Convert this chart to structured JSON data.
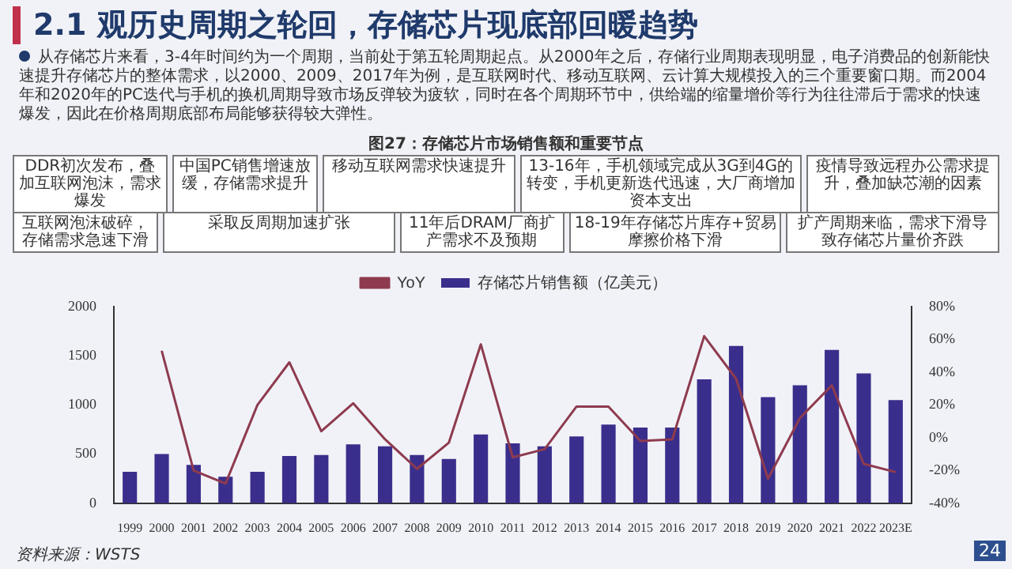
{
  "chart_data": {
    "type": "bar",
    "title": "2.1 观历史周期之轮回，存储芯片现底部回暖趋势",
    "subtitle": "从存储芯片来看，3-4年时间约为一个周期，当前处于第五轮周期起点。从2000年之后，存储行业周期表现明显，电子消费品的创新能快速提升存储芯片的整体需求，以2000、2009、2017年为例，是互联网时代、移动互联网、云计算大规模投入的三个重要窗口期。而2004年和2020年的PC迭代与手机的换机周期导致市场反弹较为疲软，同时在各个周期环节中，供给端的缩量增价等行为往往滞后于需求的快速爆发，因此在价格周期底部布局能够获得较大弹性。",
    "annotations": [
      "图27：存储芯片市场销售额和重要节点",
      "DDR初次发布，叠加互联网泡沫，需求爆发",
      "中国PC销售增速放缓，存储需求提升",
      "移动互联网需求快速提升",
      "13-16年，手机领域完成从3G到4G的转变，手机更新迭代迅速，大厂商增加资本支出",
      "疫情导致远程办公需求提升，叠加缺芯潮的因素",
      "互联网泡沫破碎，存储需求急速下滑",
      "采取反周期加速扩张",
      "11年后DRAM厂商扩产需求不及预期",
      "18-19年存储芯片库存+贸易摩擦价格下滑",
      "扩产周期来临，需求下滑导致存储芯片量价齐跌",
      "资料来源：WSTS",
      "24"
    ],
    "categories": [
      "1999",
      "2000",
      "2001",
      "2002",
      "2003",
      "2004",
      "2005",
      "2006",
      "2007",
      "2008",
      "2009",
      "2010",
      "2011",
      "2012",
      "2013",
      "2014",
      "2015",
      "2016",
      "2017",
      "2018",
      "2019",
      "2020",
      "2021",
      "2022",
      "2023E"
    ],
    "series": [
      {
        "name": "存储芯片销售额（亿美元）",
        "color": "#3a2e8c",
        "values": [
          320,
          500,
          390,
          270,
          320,
          480,
          490,
          600,
          580,
          490,
          450,
          700,
          610,
          580,
          680,
          800,
          770,
          770,
          1260,
          1600,
          1080,
          1200,
          1560,
          1320,
          1050
        ]
      },
      {
        "name": "YoY",
        "type": "line",
        "axis": "y2",
        "color": "#8e3b4f",
        "values": [
          null,
          53,
          -20,
          -28,
          20,
          46,
          4,
          21,
          -1,
          -19,
          -3,
          57,
          -12,
          -7,
          19,
          19,
          -2,
          -1,
          62,
          36,
          -25,
          12,
          32,
          -16,
          -21
        ]
      }
    ],
    "ylim": [
      0,
      2000
    ],
    "yticks": [
      0,
      500,
      1000,
      1500,
      2000
    ],
    "y2lim": [
      -40,
      80
    ],
    "y2ticks": [
      {
        "value": -40,
        "label": "-40%"
      },
      {
        "value": -20,
        "label": "-20%"
      },
      {
        "value": 0,
        "label": "0%"
      },
      {
        "value": 20,
        "label": "20%"
      },
      {
        "value": 40,
        "label": "40%"
      },
      {
        "value": 60,
        "label": "60%"
      },
      {
        "value": 80,
        "label": "80%"
      }
    ],
    "grid": false,
    "legend": "top",
    "marker": "none",
    "line_style": "solid"
  }
}
